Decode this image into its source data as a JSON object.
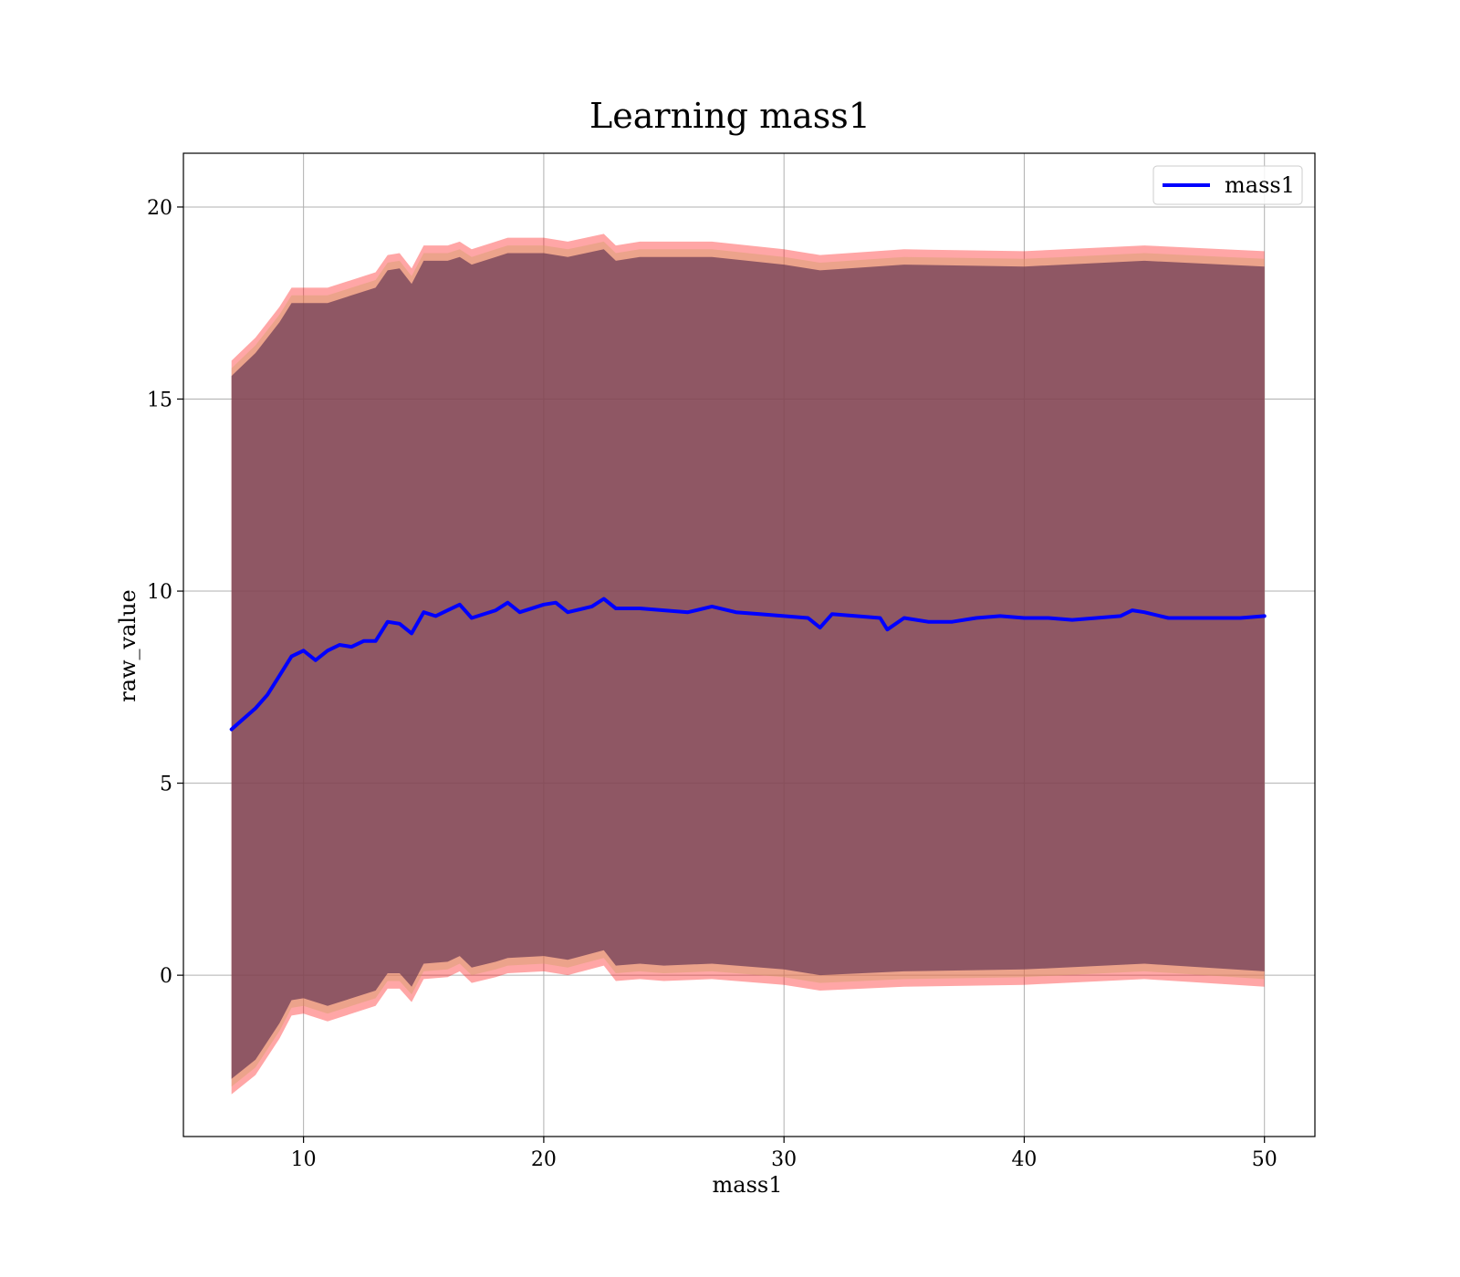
{
  "chart_data": {
    "type": "line",
    "title": "Learning mass1",
    "xlabel": "mass1",
    "ylabel": "raw_value",
    "xlim": [
      5,
      52.1
    ],
    "ylim": [
      -4.2,
      21.4
    ],
    "xticks": [
      10,
      20,
      30,
      40,
      50
    ],
    "yticks": [
      0,
      5,
      10,
      15,
      20
    ],
    "grid": true,
    "legend_position": "top-right",
    "legend": [
      "mass1"
    ],
    "series": [
      {
        "name": "mass1",
        "color": "#0000ff",
        "x": [
          7,
          8,
          8.5,
          9,
          9.5,
          10,
          10.5,
          11,
          11.5,
          12,
          12.5,
          13,
          13.5,
          14,
          14.5,
          15,
          15.5,
          16,
          16.5,
          17,
          18,
          18.5,
          19,
          20,
          20.5,
          21,
          22,
          22.5,
          23,
          24,
          25,
          26,
          27,
          28,
          29,
          30,
          31,
          31.5,
          32,
          33,
          34,
          34.3,
          35,
          36,
          37,
          38,
          39,
          40,
          41,
          42,
          43,
          44,
          44.5,
          45,
          46,
          47,
          48,
          49,
          50
        ],
        "y": [
          6.4,
          6.95,
          7.3,
          7.8,
          8.3,
          8.45,
          8.2,
          8.45,
          8.6,
          8.55,
          8.7,
          8.7,
          9.2,
          9.15,
          8.9,
          9.45,
          9.35,
          9.5,
          9.65,
          9.3,
          9.5,
          9.7,
          9.45,
          9.65,
          9.7,
          9.45,
          9.6,
          9.8,
          9.55,
          9.55,
          9.5,
          9.45,
          9.6,
          9.45,
          9.4,
          9.35,
          9.3,
          9.05,
          9.4,
          9.35,
          9.3,
          9.0,
          9.3,
          9.2,
          9.2,
          9.3,
          9.35,
          9.3,
          9.3,
          9.25,
          9.3,
          9.35,
          9.5,
          9.45,
          9.3,
          9.3,
          9.3,
          9.3,
          9.35
        ]
      }
    ],
    "bands": [
      {
        "color": "#ff0000",
        "opacity": 0.35,
        "x": [
          7,
          8,
          9,
          9.5,
          10,
          11,
          12,
          13,
          13.5,
          14,
          14.5,
          15,
          16,
          16.5,
          17,
          18,
          18.5,
          20,
          21,
          22.5,
          23,
          24,
          25,
          27,
          30,
          31.5,
          35,
          40,
          45,
          50
        ],
        "upper": [
          16.0,
          16.6,
          17.4,
          17.9,
          17.9,
          17.9,
          18.1,
          18.3,
          18.75,
          18.8,
          18.4,
          19.0,
          19.0,
          19.1,
          18.9,
          19.1,
          19.2,
          19.2,
          19.1,
          19.3,
          19.0,
          19.1,
          19.1,
          19.1,
          18.9,
          18.75,
          18.9,
          18.85,
          19.0,
          18.85
        ],
        "lower": [
          -3.1,
          -2.6,
          -1.65,
          -1.05,
          -1.0,
          -1.2,
          -1.0,
          -0.8,
          -0.35,
          -0.35,
          -0.7,
          -0.1,
          -0.05,
          0.1,
          -0.2,
          -0.05,
          0.05,
          0.1,
          0.0,
          0.25,
          -0.15,
          -0.1,
          -0.15,
          -0.1,
          -0.25,
          -0.4,
          -0.3,
          -0.25,
          -0.1,
          -0.3
        ]
      },
      {
        "color": "#d4a06a",
        "opacity": 0.45,
        "x": [
          7,
          8,
          9,
          9.5,
          10,
          11,
          12,
          13,
          13.5,
          14,
          14.5,
          15,
          16,
          16.5,
          17,
          18,
          18.5,
          20,
          21,
          22.5,
          23,
          24,
          25,
          27,
          30,
          31.5,
          35,
          40,
          45,
          50
        ],
        "upper": [
          15.8,
          16.4,
          17.2,
          17.7,
          17.7,
          17.7,
          17.9,
          18.1,
          18.55,
          18.6,
          18.2,
          18.8,
          18.8,
          18.9,
          18.7,
          18.9,
          19.0,
          19.0,
          18.9,
          19.1,
          18.8,
          18.9,
          18.9,
          18.9,
          18.7,
          18.55,
          18.7,
          18.65,
          18.8,
          18.65
        ],
        "lower": [
          -2.9,
          -2.4,
          -1.45,
          -0.85,
          -0.8,
          -1.0,
          -0.8,
          -0.6,
          -0.15,
          -0.15,
          -0.5,
          0.1,
          0.15,
          0.3,
          0.0,
          0.15,
          0.25,
          0.3,
          0.2,
          0.45,
          0.05,
          0.1,
          0.05,
          0.1,
          -0.05,
          -0.2,
          -0.1,
          -0.05,
          0.1,
          -0.1
        ]
      },
      {
        "color": "#6b3a55",
        "opacity": 0.72,
        "x": [
          7,
          8,
          9,
          9.5,
          10,
          11,
          12,
          13,
          13.5,
          14,
          14.5,
          15,
          16,
          16.5,
          17,
          18,
          18.5,
          20,
          21,
          22.5,
          23,
          24,
          25,
          27,
          30,
          31.5,
          35,
          40,
          45,
          50
        ],
        "upper": [
          15.6,
          16.2,
          17.0,
          17.5,
          17.5,
          17.5,
          17.7,
          17.9,
          18.35,
          18.4,
          18.0,
          18.6,
          18.6,
          18.7,
          18.5,
          18.7,
          18.8,
          18.8,
          18.7,
          18.9,
          18.6,
          18.7,
          18.7,
          18.7,
          18.5,
          18.35,
          18.5,
          18.45,
          18.6,
          18.45
        ],
        "lower": [
          -2.7,
          -2.2,
          -1.25,
          -0.65,
          -0.6,
          -0.8,
          -0.6,
          -0.4,
          0.05,
          0.05,
          -0.3,
          0.3,
          0.35,
          0.5,
          0.2,
          0.35,
          0.45,
          0.5,
          0.4,
          0.65,
          0.25,
          0.3,
          0.25,
          0.3,
          0.15,
          0.0,
          0.1,
          0.15,
          0.3,
          0.1
        ]
      }
    ]
  }
}
